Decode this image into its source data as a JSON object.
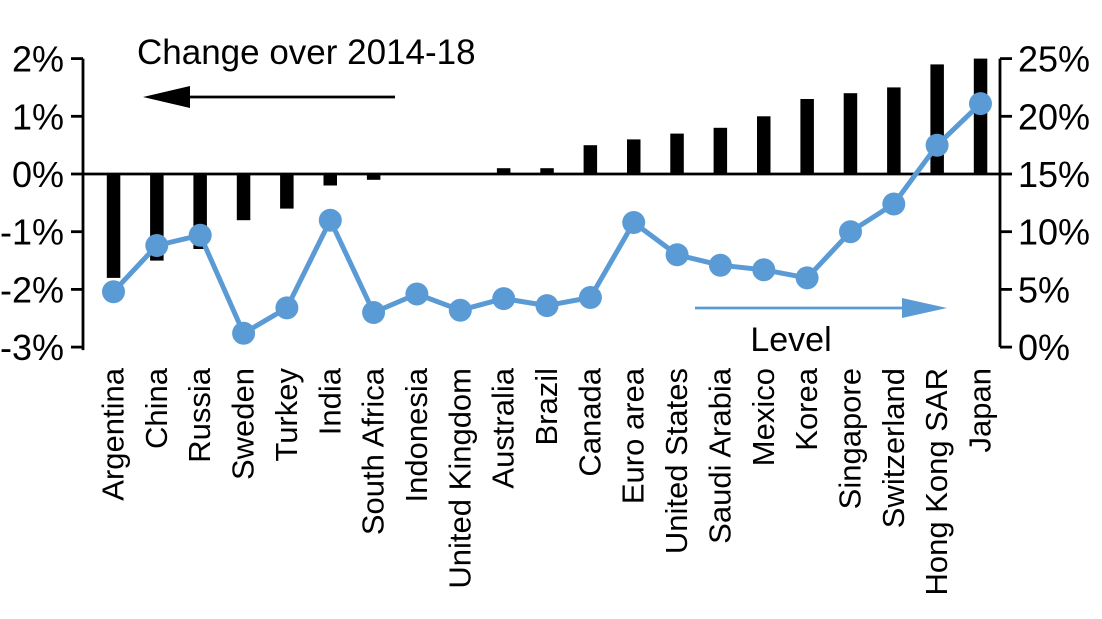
{
  "chart_data": {
    "type": "combo-bar-line",
    "title": "",
    "categories": [
      "Argentina",
      "China",
      "Russia",
      "Sweden",
      "Turkey",
      "India",
      "South Africa",
      "Indonesia",
      "United Kingdom",
      "Australia",
      "Brazil",
      "Canada",
      "Euro area",
      "United States",
      "Saudi Arabia",
      "Mexico",
      "Korea",
      "Singapore",
      "Switzerland",
      "Hong Kong SAR",
      "Japan"
    ],
    "series": [
      {
        "name": "Change over 2014-18",
        "type": "bar",
        "axis": "left",
        "color": "#000000",
        "values": [
          -1.8,
          -1.5,
          -1.3,
          -0.8,
          -0.6,
          -0.2,
          -0.1,
          0.0,
          0.0,
          0.1,
          0.1,
          0.5,
          0.6,
          0.7,
          0.8,
          1.0,
          1.3,
          1.4,
          1.5,
          1.9,
          2.0
        ]
      },
      {
        "name": "Level",
        "type": "line",
        "axis": "right",
        "color": "#5B9BD5",
        "values": [
          4.8,
          8.8,
          9.7,
          1.2,
          3.4,
          11.0,
          3.0,
          4.6,
          3.2,
          4.2,
          3.6,
          4.3,
          10.8,
          8.0,
          7.1,
          6.7,
          6.0,
          10.0,
          12.4,
          17.5,
          21.1
        ]
      }
    ],
    "left_axis": {
      "unit": "%",
      "min": -3,
      "max": 2,
      "tick_values": [
        2,
        1,
        0,
        -1,
        -2,
        -3
      ],
      "tick_labels": [
        "2%",
        "1%",
        "0%",
        "-1%",
        "-2%",
        "-3%"
      ]
    },
    "right_axis": {
      "unit": "%",
      "min": 0,
      "max": 25,
      "tick_values": [
        25,
        20,
        15,
        10,
        5,
        0
      ],
      "tick_labels": [
        "25%",
        "20%",
        "15%",
        "10%",
        "5%",
        "0%"
      ]
    },
    "annotations": [
      {
        "text": "Change over 2014-18",
        "arrow_direction": "left",
        "color": "#000000"
      },
      {
        "text": "Level",
        "arrow_direction": "right",
        "color": "#5B9BD5"
      }
    ],
    "legend_position": "none",
    "grid": false
  }
}
